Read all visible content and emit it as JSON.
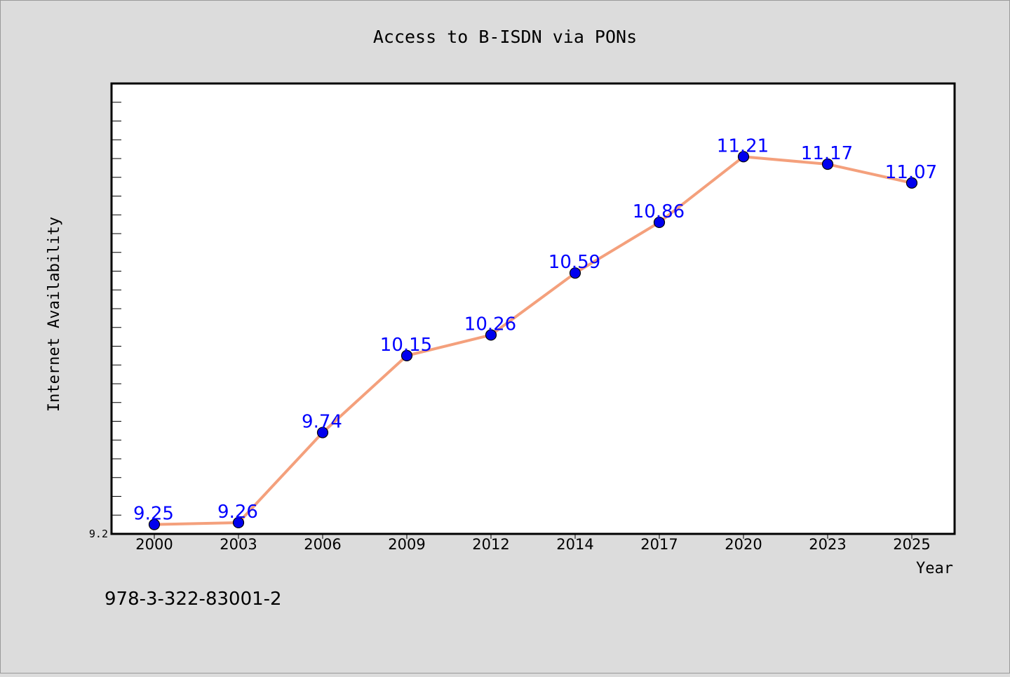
{
  "chart_data": {
    "type": "line",
    "title": "Access to B-ISDN via PONs",
    "xlabel": "Year",
    "ylabel": "Internet Availability",
    "categories": [
      "2000",
      "2003",
      "2006",
      "2009",
      "2012",
      "2014",
      "2017",
      "2020",
      "2023",
      "2025"
    ],
    "series": [
      {
        "values": [
          9.25,
          9.26,
          9.74,
          10.15,
          10.26,
          10.59,
          10.86,
          11.21,
          11.17,
          11.07
        ]
      }
    ],
    "data_labels": [
      "9.25",
      "9.26",
      "9.74",
      "10.15",
      "10.26",
      "10.59",
      "10.86",
      "11.21",
      "11.17",
      "11.07"
    ],
    "y_tick_labels": [
      "9.2"
    ],
    "ylim": [
      9.2,
      11.6
    ],
    "grid": false,
    "legend": "none",
    "colors": {
      "line": "#f4a07c",
      "marker": "#0000ee",
      "data_label": "#0000ff",
      "background": "#dcdcdc",
      "plot_background": "#ffffff"
    }
  },
  "footer": {
    "isbn": "978-3-322-83001-2"
  }
}
